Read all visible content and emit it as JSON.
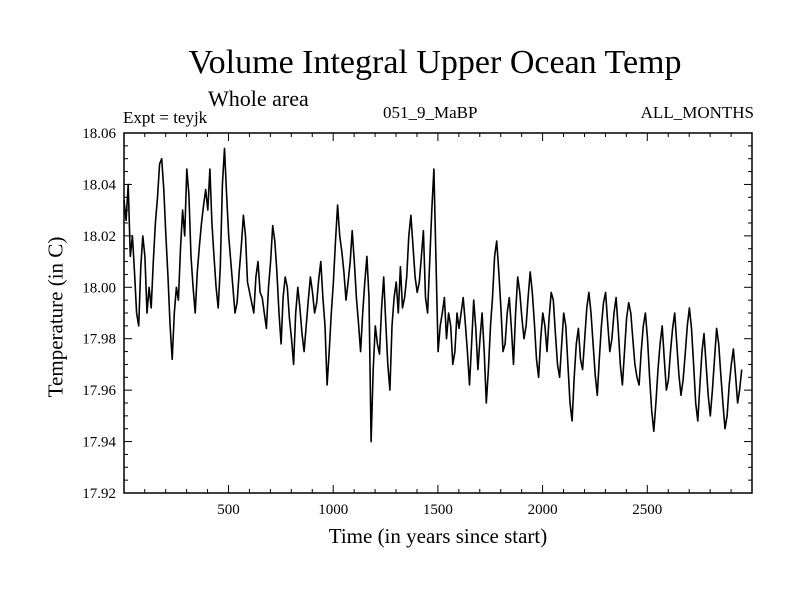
{
  "chart_data": {
    "type": "line",
    "title": "Volume Integral Upper Ocean Temp",
    "subtitle": "Whole area",
    "experiment": "Expt = teyjk",
    "run_label": "051_9_MaBP",
    "months_label": "ALL_MONTHS",
    "xlabel": "Time (in years since start)",
    "ylabel": "Temperature (in C)",
    "xlim": [
      1,
      3000
    ],
    "ylim": [
      17.92,
      18.06
    ],
    "x_ticks": [
      500,
      1000,
      1500,
      2000,
      2500
    ],
    "x_tick_labels": [
      "500",
      "1000",
      "1500",
      "2000",
      "2500"
    ],
    "y_ticks": [
      17.92,
      17.94,
      17.96,
      17.98,
      18.0,
      18.02,
      18.04,
      18.06
    ],
    "y_tick_labels": [
      "17.92",
      "17.94",
      "17.96",
      "17.98",
      "18.00",
      "18.02",
      "18.04",
      "18.06"
    ],
    "grid": false,
    "series": [
      {
        "name": "Temperature",
        "color": "#000000",
        "x_step": 10,
        "x_start": 1,
        "values": [
          18.034,
          18.026,
          18.04,
          18.012,
          18.02,
          18.006,
          17.99,
          17.985,
          18.008,
          18.02,
          18.012,
          17.99,
          18.0,
          17.992,
          18.01,
          18.025,
          18.035,
          18.048,
          18.05,
          18.038,
          18.02,
          18.004,
          17.985,
          17.972,
          17.99,
          18.0,
          17.995,
          18.015,
          18.03,
          18.02,
          18.046,
          18.036,
          18.012,
          18.0,
          17.99,
          18.006,
          18.016,
          18.025,
          18.032,
          18.038,
          18.03,
          18.046,
          18.025,
          18.012,
          18.0,
          17.992,
          18.008,
          18.04,
          18.054,
          18.036,
          18.02,
          18.01,
          18.0,
          17.99,
          17.994,
          18.006,
          18.016,
          18.028,
          18.02,
          18.002,
          17.998,
          17.994,
          17.99,
          18.004,
          18.01,
          17.998,
          17.996,
          17.99,
          17.984,
          18.0,
          18.01,
          18.024,
          18.018,
          18.006,
          17.99,
          17.978,
          17.996,
          18.004,
          18.0,
          17.988,
          17.98,
          17.97,
          17.99,
          18.0,
          17.992,
          17.982,
          17.975,
          17.985,
          17.995,
          18.004,
          17.998,
          17.99,
          17.994,
          18.003,
          18.01,
          17.996,
          17.985,
          17.962,
          17.975,
          17.99,
          18.002,
          18.018,
          18.032,
          18.02,
          18.014,
          18.006,
          17.995,
          18.002,
          18.01,
          18.022,
          18.01,
          17.996,
          17.986,
          17.975,
          17.99,
          18.002,
          18.012,
          17.996,
          17.94,
          17.968,
          17.985,
          17.978,
          17.974,
          17.992,
          18.004,
          17.986,
          17.97,
          17.96,
          17.985,
          17.996,
          18.002,
          17.99,
          18.008,
          17.992,
          17.996,
          18.004,
          18.02,
          18.028,
          18.016,
          18.004,
          17.998,
          18.002,
          18.012,
          18.022,
          17.996,
          17.99,
          18.01,
          18.03,
          18.046,
          18.01,
          17.975,
          17.985,
          17.99,
          17.996,
          17.98,
          17.99,
          17.985,
          17.97,
          17.975,
          17.99,
          17.984,
          17.99,
          17.996,
          17.986,
          17.975,
          17.962,
          17.978,
          17.995,
          17.984,
          17.968,
          17.98,
          17.99,
          17.975,
          17.955,
          17.968,
          17.985,
          17.996,
          18.012,
          18.018,
          18.006,
          17.992,
          17.975,
          17.978,
          17.99,
          17.996,
          17.984,
          17.97,
          17.99,
          18.004,
          17.998,
          17.988,
          17.98,
          17.985,
          17.996,
          18.006,
          17.998,
          17.986,
          17.972,
          17.965,
          17.98,
          17.99,
          17.985,
          17.975,
          17.988,
          17.998,
          17.995,
          17.982,
          17.97,
          17.965,
          17.978,
          17.99,
          17.985,
          17.97,
          17.955,
          17.948,
          17.965,
          17.978,
          17.984,
          17.972,
          17.968,
          17.98,
          17.992,
          17.998,
          17.99,
          17.978,
          17.966,
          17.958,
          17.972,
          17.985,
          17.994,
          17.998,
          17.986,
          17.975,
          17.98,
          17.99,
          17.996,
          17.984,
          17.97,
          17.962,
          17.975,
          17.988,
          17.994,
          17.99,
          17.98,
          17.97,
          17.965,
          17.962,
          17.975,
          17.985,
          17.99,
          17.98,
          17.965,
          17.952,
          17.944,
          17.955,
          17.968,
          17.978,
          17.985,
          17.972,
          17.96,
          17.964,
          17.975,
          17.984,
          17.99,
          17.978,
          17.966,
          17.958,
          17.964,
          17.974,
          17.985,
          17.992,
          17.984,
          17.97,
          17.955,
          17.948,
          17.962,
          17.975,
          17.982,
          17.97,
          17.958,
          17.95,
          17.96,
          17.972,
          17.984,
          17.978,
          17.966,
          17.955,
          17.945,
          17.95,
          17.962,
          17.97,
          17.976,
          17.966,
          17.955,
          17.96,
          17.968
        ]
      }
    ]
  }
}
